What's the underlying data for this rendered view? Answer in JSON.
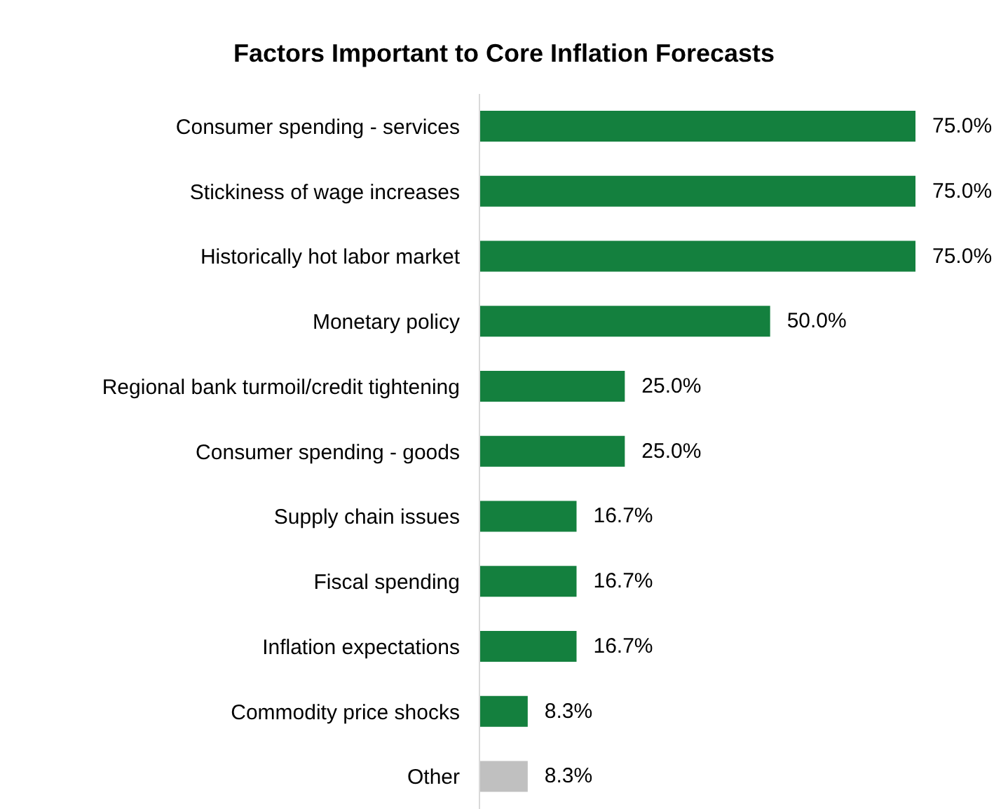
{
  "chart_data": {
    "type": "bar",
    "orientation": "horizontal",
    "title": "Factors Important to Core Inflation Forecasts",
    "categories": [
      "Consumer spending - services",
      "Stickiness of wage increases",
      "Historically hot labor market",
      "Monetary policy",
      "Regional bank turmoil/credit tightening",
      "Consumer spending - goods",
      "Supply chain issues",
      "Fiscal spending",
      "Inflation expectations",
      "Commodity price shocks",
      "Other"
    ],
    "values": [
      75.0,
      75.0,
      75.0,
      50.0,
      25.0,
      25.0,
      16.7,
      16.7,
      16.7,
      8.3,
      8.3
    ],
    "colors": [
      "#14803e",
      "#14803e",
      "#14803e",
      "#14803e",
      "#14803e",
      "#14803e",
      "#14803e",
      "#14803e",
      "#14803e",
      "#14803e",
      "#c0c0c0"
    ],
    "value_labels": [
      "75.0%",
      "75.0%",
      "75.0%",
      "50.0%",
      "25.0%",
      "25.0%",
      "16.7%",
      "16.7%",
      "16.7%",
      "8.3%",
      "8.3%"
    ],
    "grid": false,
    "legend": false
  }
}
